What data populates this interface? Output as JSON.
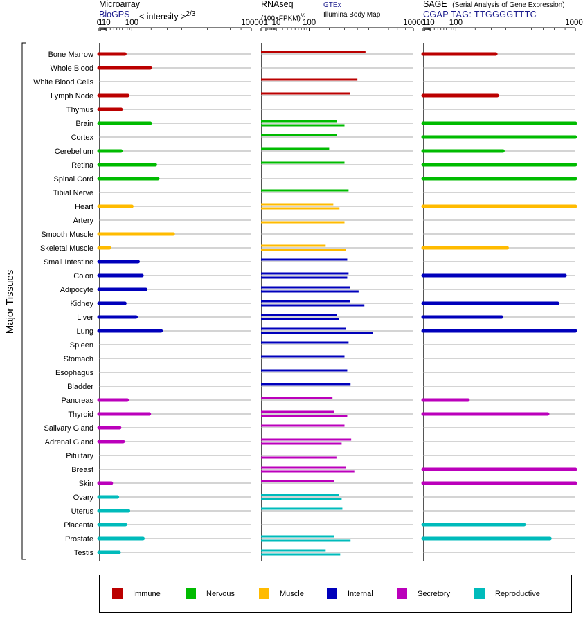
{
  "header": {
    "microarray": {
      "title": "Microarray",
      "source": "BioGPS",
      "scale": "< intensity >",
      "scale_exp": "2/3"
    },
    "rnaseq": {
      "title": "RNAseq",
      "scale": "(100×FPKM)",
      "scale_exp": "½",
      "source1": "GTEx",
      "source2": "Illumina Body Map"
    },
    "sage": {
      "title": "SAGE",
      "subtitle": "(Serial Analysis of Gene Expression)",
      "tag": "CGAP  TAG: TTGGGGTTTC"
    }
  },
  "y_axis_label": "Major Tissues",
  "legend": [
    {
      "name": "Immune",
      "color": "#bb0000"
    },
    {
      "name": "Nervous",
      "color": "#00bb00"
    },
    {
      "name": "Muscle",
      "color": "#ffbb00"
    },
    {
      "name": "Internal",
      "color": "#0000bb"
    },
    {
      "name": "Secretory",
      "color": "#bb00bb"
    },
    {
      "name": "Reproductive",
      "color": "#00bbbb"
    }
  ],
  "chart_data": {
    "type": "bar",
    "orientation": "horizontal",
    "x_ticks": [
      "0",
      "1",
      "10",
      "100",
      "1000"
    ],
    "categories": [
      "Bone Marrow",
      "Whole Blood",
      "White Blood Cells",
      "Lymph Node",
      "Thymus",
      "Brain",
      "Cortex",
      "Cerebellum",
      "Retina",
      "Spinal Cord",
      "Tibial Nerve",
      "Heart",
      "Artery",
      "Smooth Muscle",
      "Skeletal Muscle",
      "Small Intestine",
      "Colon",
      "Adipocyte",
      "Kidney",
      "Liver",
      "Lung",
      "Spleen",
      "Stomach",
      "Esophagus",
      "Bladder",
      "Pancreas",
      "Thyroid",
      "Salivary Gland",
      "Adrenal Gland",
      "Pituitary",
      "Breast",
      "Skin",
      "Ovary",
      "Uterus",
      "Placenta",
      "Prostate",
      "Testis"
    ],
    "groups": [
      "Immune",
      "Immune",
      "Immune",
      "Immune",
      "Immune",
      "Nervous",
      "Nervous",
      "Nervous",
      "Nervous",
      "Nervous",
      "Nervous",
      "Muscle",
      "Muscle",
      "Muscle",
      "Muscle",
      "Internal",
      "Internal",
      "Internal",
      "Internal",
      "Internal",
      "Internal",
      "Internal",
      "Internal",
      "Internal",
      "Internal",
      "Secretory",
      "Secretory",
      "Secretory",
      "Secretory",
      "Secretory",
      "Secretory",
      "Secretory",
      "Reproductive",
      "Reproductive",
      "Reproductive",
      "Reproductive",
      "Reproductive"
    ],
    "series": [
      {
        "name": "Microarray",
        "values": [
          70,
          195,
          null,
          82,
          55,
          195,
          null,
          55,
          225,
          240,
          null,
          100,
          null,
          340,
          18,
          130,
          150,
          170,
          70,
          120,
          260,
          null,
          null,
          null,
          null,
          80,
          190,
          50,
          63,
          null,
          null,
          23,
          42,
          85,
          72,
          155,
          48
        ]
      },
      {
        "name": "RNAseq GTEx",
        "values": [
          470,
          null,
          400,
          340,
          null,
          250,
          250,
          200,
          300,
          null,
          330,
          225,
          null,
          null,
          180,
          320,
          330,
          340,
          340,
          250,
          310,
          330,
          300,
          320,
          345,
          220,
          230,
          300,
          350,
          null,
          310,
          230,
          260,
          285,
          null,
          230,
          180
        ]
      },
      {
        "name": "RNAseq Illumina Body Map",
        "values": [
          null,
          null,
          null,
          null,
          null,
          300,
          null,
          null,
          null,
          null,
          null,
          265,
          300,
          null,
          310,
          null,
          320,
          410,
          460,
          260,
          540,
          null,
          null,
          null,
          null,
          null,
          320,
          null,
          280,
          245,
          375,
          null,
          280,
          null,
          null,
          345,
          270
        ]
      },
      {
        "name": "SAGE",
        "values": [
          330,
          null,
          null,
          340,
          null,
          1000,
          1000,
          380,
          1000,
          1000,
          null,
          1000,
          null,
          null,
          410,
          null,
          900,
          null,
          830,
          370,
          1000,
          null,
          null,
          null,
          null,
          160,
          740,
          null,
          null,
          null,
          1000,
          1000,
          null,
          null,
          540,
          760,
          null
        ]
      }
    ]
  }
}
